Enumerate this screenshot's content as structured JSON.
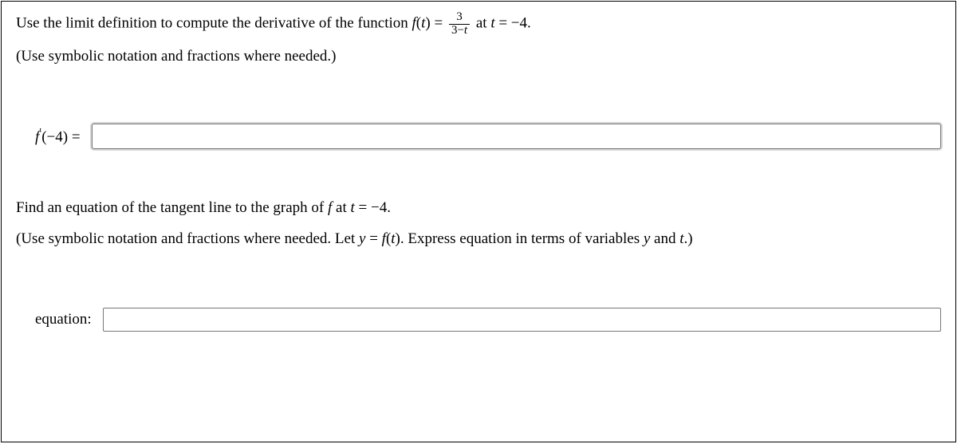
{
  "q1": {
    "text_pre": "Use the limit definition to compute the derivative of the function ",
    "func_lhs_f": "f",
    "func_lhs_paren_open": "(",
    "func_lhs_var": "t",
    "func_lhs_paren_close": ") = ",
    "frac_num": "3",
    "frac_den_a": "3−",
    "frac_den_var": "t",
    "text_at": " at ",
    "at_var": "t",
    "at_eq": " = −4.",
    "hint": "(Use symbolic notation and fractions where needed.)",
    "answer_label_f": "f",
    "answer_label_prime": "′",
    "answer_label_arg": "(−4) ="
  },
  "q2": {
    "text_pre": "Find an equation of the tangent line to the graph of ",
    "f": "f",
    "text_at": " at ",
    "at_var": "t",
    "at_eq": " = −4.",
    "hint_pre": "(Use symbolic notation and fractions where needed. Let ",
    "hint_y": "y",
    "hint_eq": " = ",
    "hint_f": "f",
    "hint_paren_open": "(",
    "hint_t": "t",
    "hint_paren_close": "). Express equation in terms of variables ",
    "hint_y2": "y",
    "hint_and": " and ",
    "hint_t2": "t",
    "hint_end": ".)",
    "answer_label": "equation:"
  }
}
